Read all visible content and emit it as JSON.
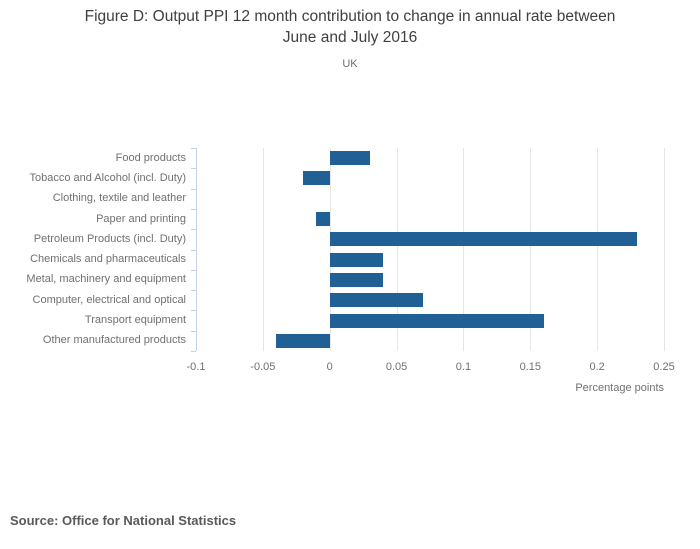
{
  "source_note": "Source: Office for National Statistics",
  "chart_data": {
    "type": "bar",
    "orientation": "horizontal",
    "title": "Figure D: Output PPI 12 month contribution to change in annual rate between June and July 2016",
    "subtitle": "UK",
    "xlabel": "Percentage points",
    "ylabel": "",
    "categories": [
      "Food products",
      "Tobacco and Alcohol (incl. Duty)",
      "Clothing, textile and leather",
      "Paper and printing",
      "Petroleum Products (incl. Duty)",
      "Chemicals and pharmaceuticals",
      "Metal, machinery and equipment",
      "Computer, electrical and optical",
      "Transport equipment",
      "Other manufactured products"
    ],
    "values": [
      0.03,
      -0.02,
      0,
      -0.01,
      0.23,
      0.04,
      0.04,
      0.07,
      0.16,
      -0.04
    ],
    "xlim": [
      -0.1,
      0.25
    ],
    "xticks": [
      -0.1,
      -0.05,
      0,
      0.05,
      0.1,
      0.15,
      0.2,
      0.25
    ],
    "xtick_labels": [
      "-0.1",
      "-0.05",
      "0",
      "0.05",
      "0.1",
      "0.15",
      "0.2",
      "0.25"
    ],
    "grid": "vertical",
    "legend": "none",
    "bar_color": "#206095",
    "gridline_color": "#e6e6e6",
    "axis_color": "#c5d1e6",
    "label_color": "#707070"
  }
}
